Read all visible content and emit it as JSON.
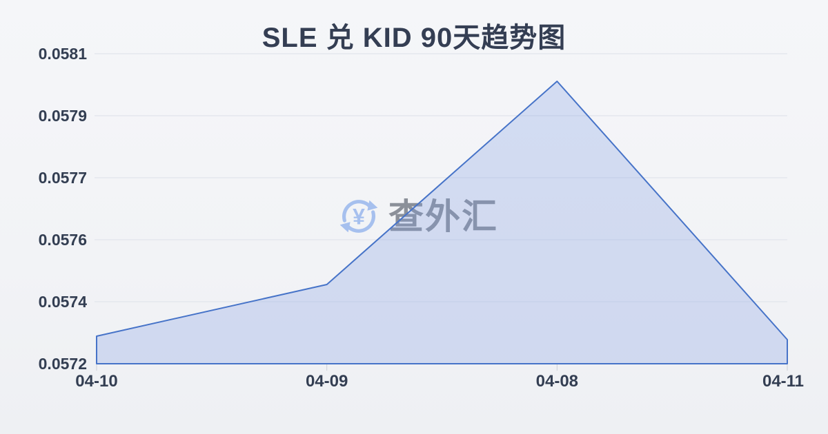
{
  "page": {
    "title": "SLE 兑 KID 90天趋势图"
  },
  "watermark": {
    "icon": "currency-exchange-icon",
    "currency_symbol": "¥",
    "text": "查外汇"
  },
  "chart_data": {
    "type": "area",
    "title": "SLE 兑 KID 90天趋势图",
    "x_labels": [
      "04-10",
      "04-09",
      "04-08",
      "04-11"
    ],
    "values": [
      0.05728,
      0.05743,
      0.05802,
      0.05727
    ],
    "y_tick_labels": [
      "0.0581",
      "0.0579",
      "0.0577",
      "0.0576",
      "0.0574",
      "0.0572"
    ],
    "ylim": [
      0.0572,
      0.0581
    ],
    "grid": true,
    "legend_position": "none",
    "colors": {
      "line": "#4673c8",
      "fill": "rgba(125, 155, 225, 0.28)",
      "grid": "#e4e7ed",
      "x_tick_mark": "#ccd0d8",
      "axis_text": "#333e52",
      "title_text": "#343e53",
      "watermark_icon": "#a6c0ee",
      "watermark_text": "#8b9099",
      "background": "#f4f5f7"
    }
  }
}
